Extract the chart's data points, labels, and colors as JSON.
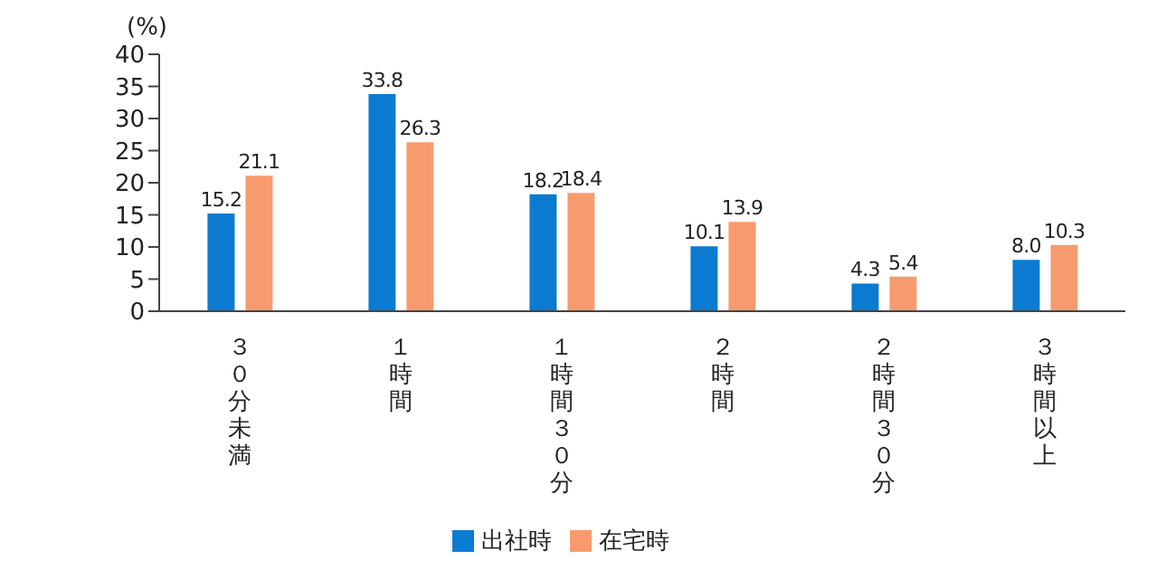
{
  "chart_data": {
    "type": "bar",
    "ylabel": "(%)",
    "categories": [
      "３０分未満",
      "１時間",
      "１時間３０分",
      "２時間",
      "２時間３０分",
      "３時間以上"
    ],
    "series": [
      {
        "name": "出社時",
        "color": "#0a7bd0",
        "values": [
          15.2,
          33.8,
          18.2,
          10.1,
          4.3,
          8.0
        ]
      },
      {
        "name": "在宅時",
        "color": "#f79b6e",
        "values": [
          21.1,
          26.3,
          18.4,
          13.9,
          5.4,
          10.3
        ]
      }
    ],
    "value_labels": [
      [
        "15.2",
        "33.8",
        "18.2",
        "10.1",
        "4.3",
        "8.0"
      ],
      [
        "21.1",
        "26.3",
        "18.4",
        "13.9",
        "5.4",
        "10.3"
      ]
    ],
    "ylim": [
      0,
      40
    ],
    "yticks": [
      0,
      5,
      10,
      15,
      20,
      25,
      30,
      35,
      40
    ],
    "grid": false,
    "legend": "bottom"
  }
}
